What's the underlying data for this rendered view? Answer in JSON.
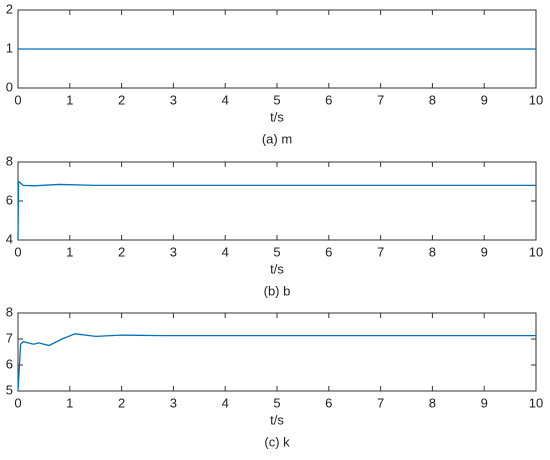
{
  "chart_data": [
    {
      "type": "line",
      "title": "(a) m",
      "xlabel": "t/s",
      "x": [
        0,
        10
      ],
      "series": [
        {
          "color": "#0072bd",
          "values": [
            1,
            1
          ]
        }
      ],
      "xlim": [
        0,
        10
      ],
      "xticks": [
        0,
        1,
        2,
        3,
        4,
        5,
        6,
        7,
        8,
        9,
        10
      ],
      "ylim": [
        0,
        2
      ],
      "yticks": [
        0,
        1,
        2
      ]
    },
    {
      "type": "line",
      "title": "(b) b",
      "xlabel": "t/s",
      "x": [
        0,
        0.01,
        0.1,
        0.3,
        0.8,
        1.5,
        3,
        10
      ],
      "series": [
        {
          "color": "#0072bd",
          "values": [
            4,
            7.0,
            6.8,
            6.78,
            6.85,
            6.8,
            6.8,
            6.8
          ]
        }
      ],
      "xlim": [
        0,
        10
      ],
      "xticks": [
        0,
        1,
        2,
        3,
        4,
        5,
        6,
        7,
        8,
        9,
        10
      ],
      "ylim": [
        4,
        8
      ],
      "yticks": [
        4,
        6,
        8
      ]
    },
    {
      "type": "line",
      "title": "(c) k",
      "xlabel": "t/s",
      "x": [
        0,
        0.05,
        0.1,
        0.3,
        0.4,
        0.6,
        0.85,
        1.1,
        1.5,
        2,
        2.8,
        10
      ],
      "series": [
        {
          "color": "#0072bd",
          "values": [
            5,
            6.8,
            6.9,
            6.8,
            6.85,
            6.75,
            7.0,
            7.2,
            7.1,
            7.15,
            7.13,
            7.13
          ]
        }
      ],
      "xlim": [
        0,
        10
      ],
      "xticks": [
        0,
        1,
        2,
        3,
        4,
        5,
        6,
        7,
        8,
        9,
        10
      ],
      "ylim": [
        5,
        8
      ],
      "yticks": [
        5,
        6,
        7,
        8
      ]
    }
  ]
}
